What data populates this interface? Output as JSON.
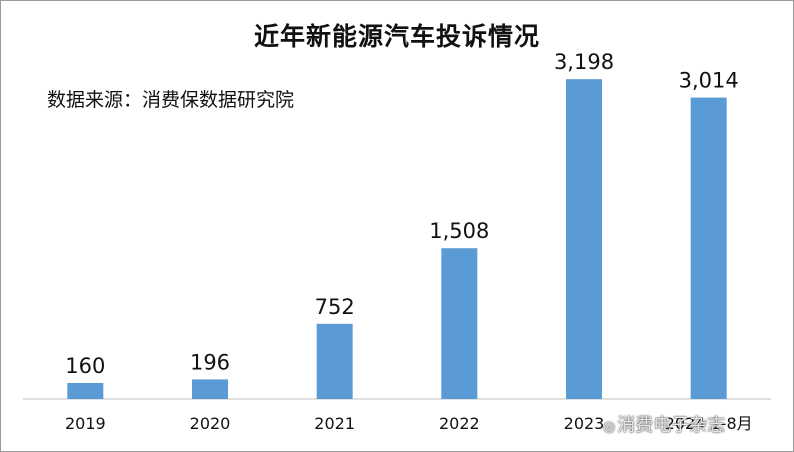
{
  "chart_data": {
    "type": "bar",
    "title": "近年新能源汽车投诉情况",
    "source_note": "数据来源：消费保数据研究院",
    "categories": [
      "2019",
      "2020",
      "2021",
      "2022",
      "2023",
      "2024 1-8月"
    ],
    "values": [
      160,
      196,
      752,
      1508,
      3198,
      3014
    ],
    "value_labels": [
      "160",
      "196",
      "752",
      "1,508",
      "3,198",
      "3,014"
    ],
    "ylim": [
      0,
      3500
    ],
    "grid": false,
    "legend": "none",
    "bar_color": "#5b9bd5"
  },
  "watermark": {
    "icon": "weibo-icon",
    "text": "消费电子杂志"
  }
}
